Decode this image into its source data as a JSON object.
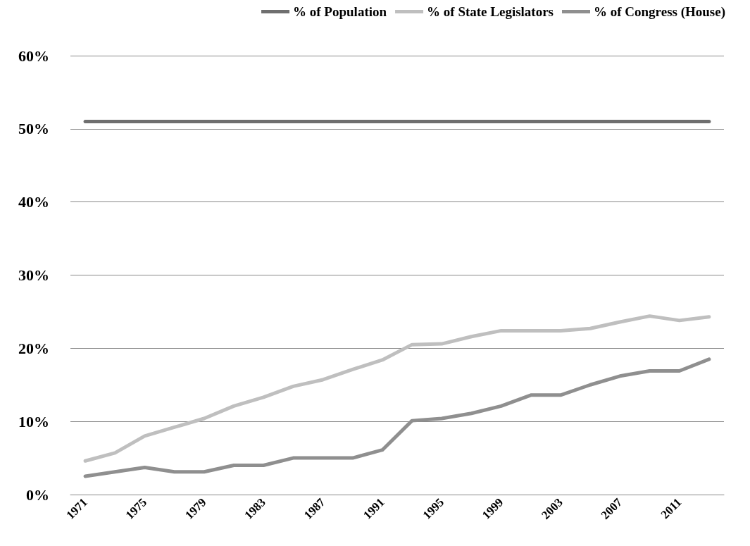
{
  "chart_data": {
    "type": "line",
    "categories": [
      "1971",
      null,
      "1975",
      null,
      "1979",
      null,
      "1983",
      null,
      "1987",
      null,
      "1991",
      null,
      "1995",
      null,
      "1999",
      null,
      "2003",
      null,
      "2007",
      null,
      "2011",
      null
    ],
    "series": [
      {
        "name": "% of Population",
        "color": "#6f6f6f",
        "values": [
          51,
          51,
          51,
          51,
          51,
          51,
          51,
          51,
          51,
          51,
          51,
          51,
          51,
          51,
          51,
          51,
          51,
          51,
          51,
          51,
          51,
          51
        ]
      },
      {
        "name": "% of State Legislators",
        "color": "#bfbfbf",
        "values": [
          4.6,
          5.7,
          8.0,
          9.2,
          10.4,
          12.1,
          13.3,
          14.8,
          15.7,
          17.1,
          18.4,
          20.5,
          20.6,
          21.6,
          22.4,
          22.4,
          22.4,
          22.7,
          23.6,
          24.4,
          23.8,
          24.3
        ]
      },
      {
        "name": "% of Congress (House)",
        "color": "#8f8f8f",
        "values": [
          2.5,
          3.1,
          3.7,
          3.1,
          3.1,
          4.0,
          4.0,
          5.0,
          5.0,
          5.0,
          6.1,
          10.1,
          10.4,
          11.1,
          12.1,
          13.6,
          13.6,
          15.0,
          16.2,
          16.9,
          16.9,
          18.5
        ]
      }
    ],
    "ylim": [
      0,
      60
    ],
    "yticks": [
      {
        "value": 0,
        "label": "0%"
      },
      {
        "value": 10,
        "label": "10%"
      },
      {
        "value": 20,
        "label": "20%"
      },
      {
        "value": 30,
        "label": "30%"
      },
      {
        "value": 40,
        "label": "40%"
      },
      {
        "value": 50,
        "label": "50%"
      },
      {
        "value": 60,
        "label": "60%"
      }
    ],
    "grid": "y",
    "legend": "top right",
    "marker": "none",
    "line_style": "solid"
  }
}
